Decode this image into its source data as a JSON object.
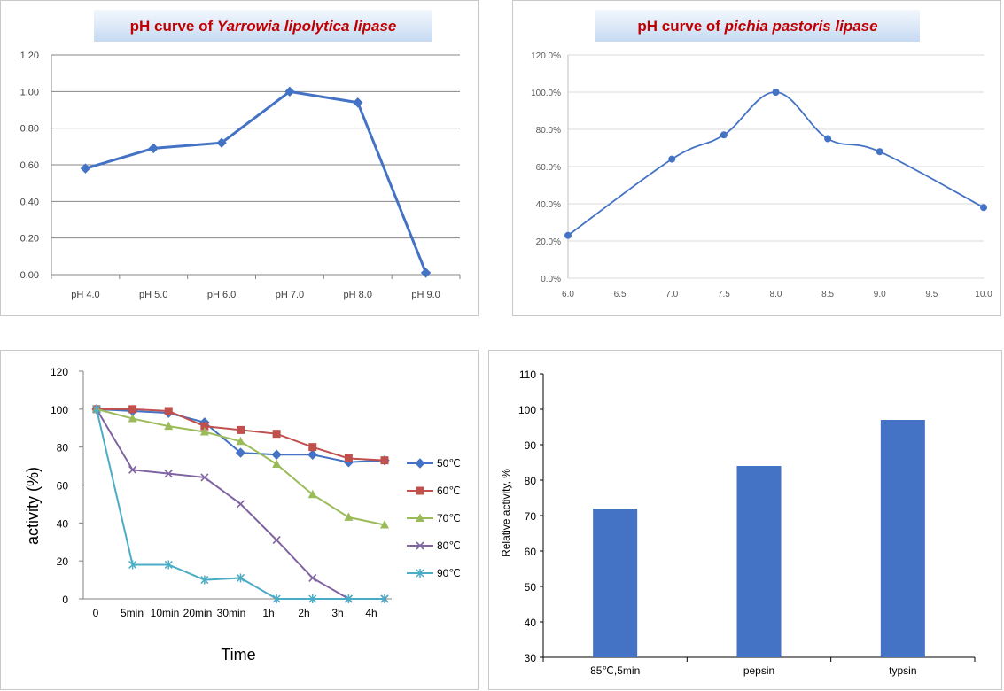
{
  "colors": {
    "c1_line": "#4472c4",
    "c2_line": "#4472c4",
    "bar": "#4472c4",
    "s50": "#4472c4",
    "s60": "#c0504d",
    "s70": "#9bbb59",
    "s80": "#8064a2",
    "s90": "#4bacc6",
    "title_text": "#c00000"
  },
  "chart_data": [
    {
      "type": "line",
      "title_prefix": "pH curve of ",
      "title_italic": "Yarrowia lipolytica lipase",
      "categories": [
        "pH 4.0",
        "pH 5.0",
        "pH 6.0",
        "pH 7.0",
        "pH 8.0",
        "pH 9.0"
      ],
      "values": [
        0.58,
        0.69,
        0.72,
        1.0,
        0.94,
        0.01
      ],
      "ylim": [
        0,
        1.2
      ],
      "yticks": [
        "0.00",
        "0.20",
        "0.40",
        "0.60",
        "0.80",
        "1.00",
        "1.20"
      ],
      "grid": true
    },
    {
      "type": "line",
      "title_prefix": "pH curve of ",
      "title_italic": "pichia pastoris lipase",
      "x": [
        6.0,
        7.0,
        7.5,
        8.0,
        8.5,
        9.0,
        10.0
      ],
      "y": [
        0.23,
        0.64,
        0.77,
        1.0,
        0.75,
        0.68,
        0.38
      ],
      "xticks": [
        "6.0",
        "6.5",
        "7.0",
        "7.5",
        "8.0",
        "8.5",
        "9.0",
        "9.5",
        "10.0"
      ],
      "yticks": [
        "0.0%",
        "20.0%",
        "40.0%",
        "60.0%",
        "80.0%",
        "100.0%",
        "120.0%"
      ],
      "xlim": [
        6,
        10
      ],
      "ylim": [
        0,
        1.2
      ],
      "grid": true
    },
    {
      "type": "line",
      "xlabel": "Time",
      "ylabel": "activity (%)",
      "categories": [
        "0",
        "5min",
        "10min",
        "20min",
        "30min",
        "1h",
        "2h",
        "3h",
        "4h"
      ],
      "ylim": [
        0,
        120
      ],
      "yticks": [
        "0",
        "20",
        "40",
        "60",
        "80",
        "100",
        "120"
      ],
      "legend_position": "right",
      "series": [
        {
          "name": "50℃",
          "marker": "diamond",
          "values": [
            100,
            99,
            98,
            93,
            77,
            76,
            76,
            72,
            73
          ]
        },
        {
          "name": "60℃",
          "marker": "square",
          "values": [
            100,
            100,
            99,
            91,
            89,
            87,
            80,
            74,
            73
          ]
        },
        {
          "name": "70℃",
          "marker": "triangle",
          "values": [
            100,
            95,
            91,
            88,
            83,
            71,
            55,
            43,
            39
          ]
        },
        {
          "name": "80℃",
          "marker": "x",
          "values": [
            100,
            68,
            66,
            64,
            50,
            31,
            11,
            0,
            0
          ]
        },
        {
          "name": "90℃",
          "marker": "star",
          "values": [
            100,
            18,
            18,
            10,
            11,
            0,
            0,
            0,
            0
          ]
        }
      ]
    },
    {
      "type": "bar",
      "ylabel": "Relative activity, %",
      "categories": [
        "85℃,5min",
        "pepsin",
        "typsin"
      ],
      "values": [
        72,
        84,
        97
      ],
      "ylim": [
        30,
        110
      ],
      "yticks": [
        "30",
        "40",
        "50",
        "60",
        "70",
        "80",
        "90",
        "100",
        "110"
      ]
    }
  ]
}
